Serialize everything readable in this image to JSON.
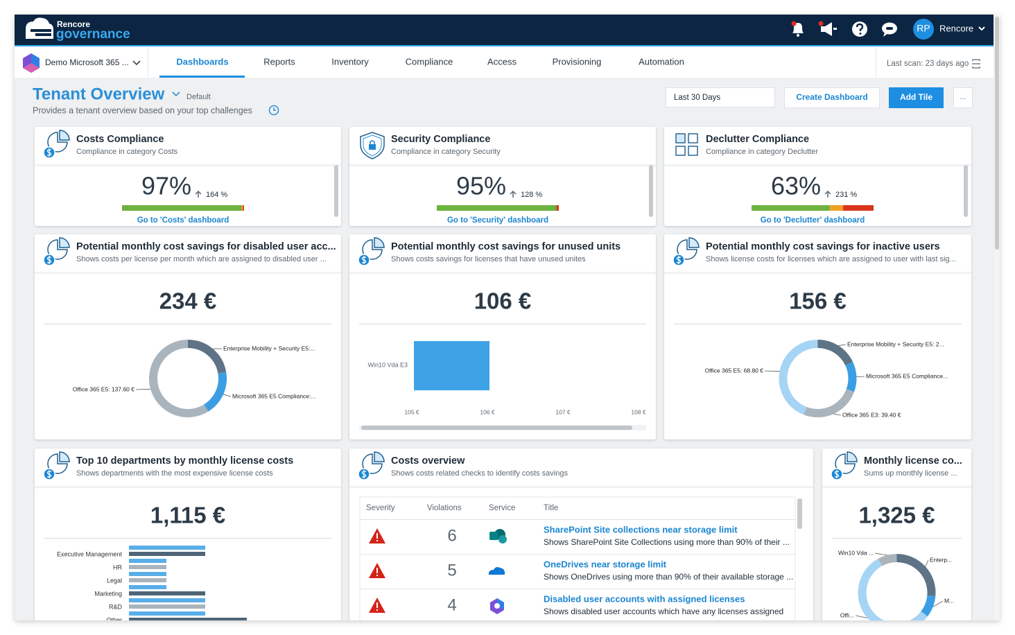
{
  "header": {
    "brand_top": "Rencore",
    "brand_bottom": "governance",
    "avatar": "RP",
    "user": "Rencore"
  },
  "tenant": "Demo Microsoft 365 ...",
  "nav": [
    "Dashboards",
    "Reports",
    "Inventory",
    "Compliance",
    "Access",
    "Provisioning",
    "Automation"
  ],
  "last_scan": "Last scan: 23 days ago",
  "page": {
    "title": "Tenant Overview",
    "badge": "Default",
    "subtitle": "Provides a tenant overview based on your top challenges"
  },
  "toolbar": {
    "range": "Last 30 Days",
    "create": "Create Dashboard",
    "add": "Add Tile",
    "more": "..."
  },
  "tiles": [
    {
      "title": "Costs Compliance",
      "subtitle": "Compliance in category Costs",
      "value": "97%",
      "change": "164 %",
      "link": "Go to 'Costs' dashboard",
      "bar": {
        "values": [
          98,
          1,
          1
        ],
        "colors": [
          "#6cb33f",
          "#f0a023",
          "#d9361f"
        ]
      }
    },
    {
      "title": "Security Compliance",
      "subtitle": "Compliance in category Security",
      "value": "95%",
      "change": "128 %",
      "link": "Go to 'Security' dashboard",
      "bar": {
        "values": [
          98,
          0,
          2
        ],
        "colors": [
          "#6cb33f",
          "#f0a023",
          "#d9361f"
        ]
      }
    },
    {
      "title": "Declutter Compliance",
      "subtitle": "Compliance in category Declutter",
      "value": "63%",
      "change": "231 %",
      "link": "Go to 'Declutter' dashboard",
      "bar": {
        "values": [
          64,
          11,
          25
        ],
        "colors": [
          "#6cb33f",
          "#f0a023",
          "#d9361f"
        ]
      }
    },
    {
      "title": "Potential monthly cost savings for disabled user acc...",
      "subtitle": "Shows costs per license per month which are assigned to disabled user ...",
      "value": "234 €",
      "chart": {
        "type": "pie",
        "labels": [
          "Enterprise Mobility + Security E5:...",
          "Microsoft 365 E5 Compliance:...",
          "Office 365 E5: 137.60 €"
        ],
        "values": [
          52.2,
          44.2,
          137.6
        ],
        "colors": [
          "#5e7385",
          "#3b9ee3",
          "#aab4bd"
        ]
      }
    },
    {
      "title": "Potential monthly cost savings for unused units",
      "subtitle": "Shows costs savings for licenses that have unused unites",
      "value": "106 €",
      "chart": {
        "type": "barh",
        "categories": [
          "Win10 Vda E3"
        ],
        "values": [
          106
        ],
        "color": "#3ea3e6",
        "xlim": [
          105,
          108
        ],
        "xticks": [
          {
            "value": 105,
            "label": "105 €"
          },
          {
            "value": 106,
            "label": "106 €"
          },
          {
            "value": 107,
            "label": "107 €"
          },
          {
            "value": 108,
            "label": "108 €"
          }
        ]
      }
    },
    {
      "title": "Potential monthly cost savings for inactive users",
      "subtitle": "Shows license costs for licenses which are assigned to user with last sig...",
      "value": "156 €",
      "chart": {
        "type": "pie",
        "labels": [
          "Enterprise Mobility + Security E5: 2...",
          "Microsoft 365 E5 Compliance...",
          "Office 365 E3: 39.40 €",
          "Office 365 E5: 68.80 €"
        ],
        "values": [
          28,
          19.8,
          39.4,
          68.8
        ],
        "colors": [
          "#5e7385",
          "#3b9ee3",
          "#aab4bd",
          "#a6d4f5"
        ]
      }
    },
    {
      "title": "Top 10 departments by monthly license costs",
      "subtitle": "Shows departments with the most expensive license costs",
      "value": "1,115 €",
      "chart": {
        "type": "bars",
        "categories": [
          "Executive Management",
          "HR",
          "Legal",
          "Marketing",
          "R&D",
          "Other"
        ],
        "xlim": [
          0,
          290
        ],
        "series": [
          {
            "color": "#5aaee8",
            "values": [
              110,
              54,
              54,
              54,
              110,
              110
            ]
          },
          {
            "colors": [
              "#4f6577",
              "#aab4bd",
              "#aab4bd",
              "#4f6577",
              "#aab4bd",
              "#4f6577"
            ],
            "values": [
              110,
              54,
              54,
              110,
              110,
              170
            ]
          }
        ]
      }
    },
    {
      "title": "Costs overview",
      "subtitle": "Shows costs related checks to identify costs savings",
      "table": {
        "columns": [
          "Severity",
          "Violations",
          "Service",
          "Title"
        ],
        "rows": [
          {
            "violations": 6,
            "title": "SharePoint Site collections near storage limit",
            "description": "Shows SharePoint Site Collections using more than 90% of their ..."
          },
          {
            "violations": 5,
            "title": "OneDrives near storage limit",
            "description": "Shows OneDrives using more than 90% of their available storage ..."
          },
          {
            "violations": 4,
            "title": "Disabled user accounts with assigned licenses",
            "description": "Shows disabled user accounts which have any licenses assigned"
          }
        ]
      }
    },
    {
      "title": "Monthly license co...",
      "subtitle": "Sums up monthly license ...",
      "value": "1,325 €",
      "chart": {
        "type": "pie",
        "labels": [
          "Enterp...",
          "M...",
          "Offi...",
          "Win10 Vda ..."
        ],
        "values": [
          350,
          120,
          749,
          106
        ],
        "colors": [
          "#5e7385",
          "#3b9ee3",
          "#a6d4f5",
          "#aab4bd"
        ]
      }
    }
  ]
}
